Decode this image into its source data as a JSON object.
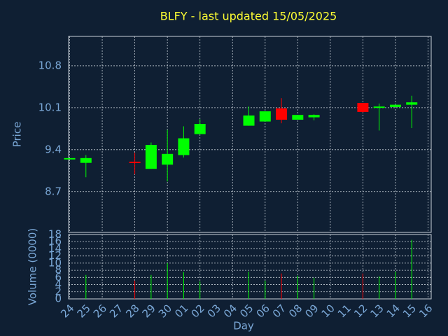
{
  "chart_data": {
    "type": "candlestick",
    "title": "BLFY - last updated 15/05/2025",
    "ylabel": "Price",
    "xlabel": "Day",
    "categories": [
      "24",
      "25",
      "26",
      "27",
      "28",
      "29",
      "30",
      "01",
      "02",
      "03",
      "04",
      "05",
      "06",
      "07",
      "08",
      "09",
      "10",
      "11",
      "12",
      "13",
      "14",
      "15",
      "16"
    ],
    "open": [
      9.26,
      9.18,
      null,
      null,
      9.2,
      9.08,
      9.15,
      9.31,
      9.66,
      null,
      null,
      9.8,
      9.87,
      10.09,
      9.9,
      9.94,
      null,
      null,
      10.18,
      10.1,
      10.11,
      10.15,
      null
    ],
    "high": [
      9.26,
      9.31,
      null,
      null,
      9.35,
      9.52,
      9.73,
      9.79,
      9.91,
      null,
      null,
      10.12,
      10.04,
      10.26,
      9.98,
      9.99,
      null,
      null,
      10.18,
      10.17,
      10.15,
      10.3,
      null
    ],
    "low": [
      9.26,
      8.94,
      null,
      null,
      8.99,
      9.08,
      8.87,
      9.27,
      9.66,
      null,
      null,
      9.8,
      9.87,
      9.84,
      9.9,
      9.89,
      null,
      null,
      10.02,
      9.72,
      10.11,
      9.76,
      null
    ],
    "close": [
      9.26,
      9.26,
      null,
      null,
      9.19,
      9.48,
      9.33,
      9.59,
      9.83,
      null,
      null,
      9.97,
      10.04,
      9.9,
      9.98,
      9.98,
      null,
      null,
      10.03,
      10.12,
      10.15,
      10.19,
      null
    ],
    "up_color": "#00ff00",
    "down_color": "#ff0000",
    "ylim": [
      8.02,
      11.29
    ],
    "yticks": [
      8.7,
      9.4,
      10.1,
      10.8
    ],
    "grid": true,
    "volume": {
      "ylabel": "Volume (0000)",
      "values": [
        0,
        6.7,
        null,
        null,
        5.1,
        6.7,
        10.0,
        7.5,
        4.9,
        null,
        null,
        7.6,
        5.1,
        7.1,
        6.5,
        5.9,
        null,
        null,
        7.1,
        6.3,
        7.6,
        16.5,
        null
      ],
      "ylim": [
        0,
        18
      ],
      "yticks": [
        0,
        2,
        4,
        6,
        8,
        10,
        12,
        14,
        16,
        18
      ]
    }
  }
}
